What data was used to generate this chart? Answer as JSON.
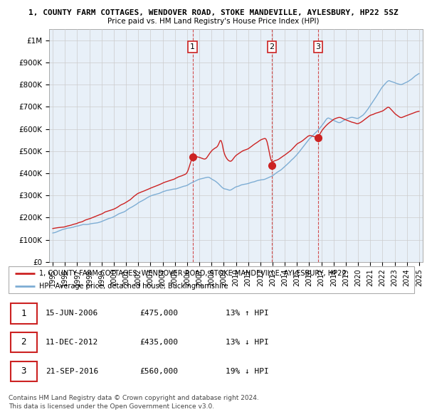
{
  "title_line1": "1, COUNTY FARM COTTAGES, WENDOVER ROAD, STOKE MANDEVILLE, AYLESBURY, HP22 5SZ",
  "title_line2": "Price paid vs. HM Land Registry's House Price Index (HPI)",
  "ylim": [
    0,
    1050000
  ],
  "yticks": [
    0,
    100000,
    200000,
    300000,
    400000,
    500000,
    600000,
    700000,
    800000,
    900000,
    1000000
  ],
  "ytick_labels": [
    "£0",
    "£100K",
    "£200K",
    "£300K",
    "£400K",
    "£500K",
    "£600K",
    "£700K",
    "£800K",
    "£900K",
    "£1M"
  ],
  "hpi_color": "#7dadd4",
  "price_color": "#cc2222",
  "vline_color": "#cc2222",
  "grid_color": "#cccccc",
  "chart_bg_color": "#e8f0f8",
  "background_color": "#ffffff",
  "sales": [
    {
      "date_num": 2006.45,
      "price": 475000,
      "label": "1"
    },
    {
      "date_num": 2012.94,
      "price": 435000,
      "label": "2"
    },
    {
      "date_num": 2016.72,
      "price": 560000,
      "label": "3"
    }
  ],
  "legend_label_price": "1, COUNTY FARM COTTAGES, WENDOVER ROAD, STOKE MANDEVILLE, AYLESBURY, HP22",
  "legend_label_hpi": "HPI: Average price, detached house, Buckinghamshire",
  "footer1": "Contains HM Land Registry data © Crown copyright and database right 2024.",
  "footer2": "This data is licensed under the Open Government Licence v3.0.",
  "table_rows": [
    [
      "1",
      "15-JUN-2006",
      "£475,000",
      "13% ↑ HPI"
    ],
    [
      "2",
      "11-DEC-2012",
      "£435,000",
      "13% ↓ HPI"
    ],
    [
      "3",
      "21-SEP-2016",
      "£560,000",
      "19% ↓ HPI"
    ]
  ]
}
